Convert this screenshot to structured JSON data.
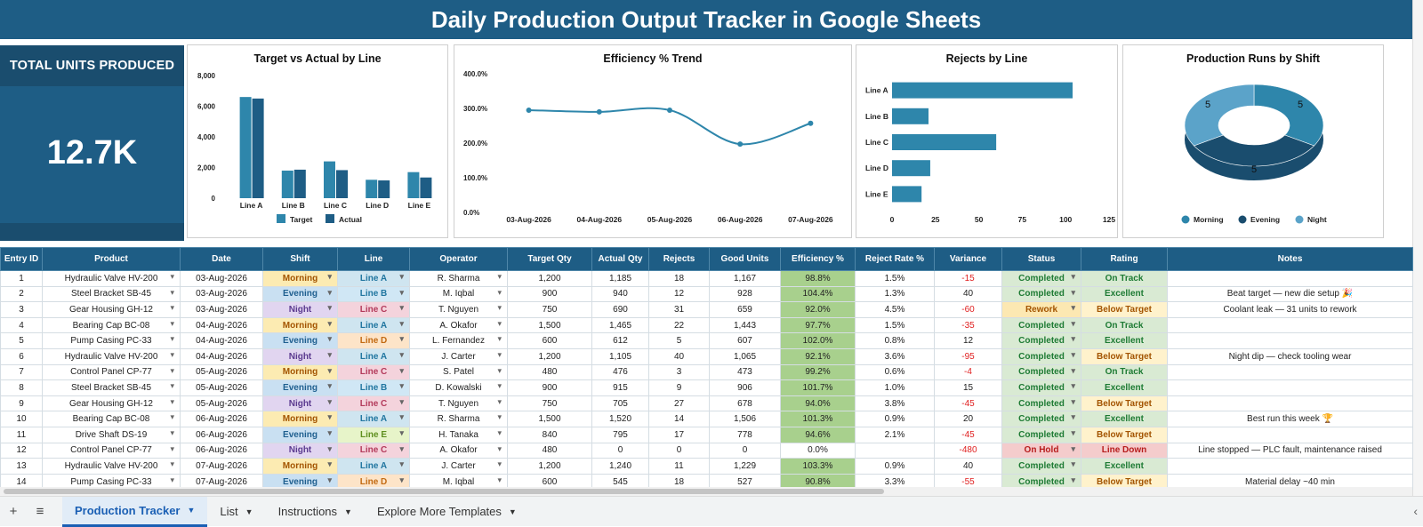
{
  "title": "Daily Production Output Tracker in Google Sheets",
  "kpi": {
    "label": "TOTAL UNITS PRODUCED",
    "value": "12.7K"
  },
  "colors": {
    "primary": "#1e5d85",
    "dark": "#1a4d6e",
    "accent": "#2e86ab",
    "light": "#5ba3c9"
  },
  "charts": {
    "target_vs_actual": {
      "title": "Target vs Actual by Line",
      "type": "bar",
      "categories": [
        "Line A",
        "Line B",
        "Line C",
        "Line D",
        "Line E"
      ],
      "series": [
        {
          "name": "Target",
          "values": [
            6600,
            1800,
            2400,
            1200,
            1700
          ]
        },
        {
          "name": "Actual",
          "values": [
            6500,
            1860,
            1830,
            1160,
            1350
          ]
        }
      ],
      "yticks": [
        "8,000",
        "6,000",
        "4,000",
        "2,000",
        "0"
      ],
      "ylim": [
        0,
        8000
      ]
    },
    "efficiency_trend": {
      "title": "Efficiency % Trend",
      "type": "line",
      "x": [
        "03-Aug-2026",
        "04-Aug-2026",
        "05-Aug-2026",
        "06-Aug-2026",
        "07-Aug-2026"
      ],
      "values": [
        295,
        290,
        295,
        197,
        257
      ],
      "yticks": [
        "400.0%",
        "300.0%",
        "200.0%",
        "100.0%",
        "0.0%"
      ],
      "ylim": [
        0,
        400
      ]
    },
    "rejects_by_line": {
      "title": "Rejects by Line",
      "type": "bar",
      "categories": [
        "Line A",
        "Line B",
        "Line C",
        "Line D",
        "Line E"
      ],
      "values": [
        104,
        21,
        60,
        22,
        17
      ],
      "xticks": [
        "0",
        "25",
        "50",
        "75",
        "100",
        "125"
      ],
      "xlim": [
        0,
        125
      ]
    },
    "runs_by_shift": {
      "title": "Production Runs by Shift",
      "type": "pie",
      "labels": [
        "Morning",
        "Evening",
        "Night"
      ],
      "values": [
        5,
        5,
        5
      ],
      "value_labels": [
        "5",
        "5",
        "5"
      ]
    }
  },
  "table": {
    "headers": [
      "Entry ID",
      "Product",
      "Date",
      "Shift",
      "Line",
      "Operator",
      "Target Qty",
      "Actual Qty",
      "Rejects",
      "Good Units",
      "Efficiency %",
      "Reject Rate %",
      "Variance",
      "Status",
      "Rating",
      "Notes"
    ],
    "rows": [
      [
        "1",
        "Hydraulic Valve HV-200",
        "03-Aug-2026",
        "Morning",
        "Line A",
        "R. Sharma",
        "1,200",
        "1,185",
        "18",
        "1,167",
        "98.8%",
        "1.5%",
        "-15",
        "Completed",
        "On Track",
        ""
      ],
      [
        "2",
        "Steel Bracket SB-45",
        "03-Aug-2026",
        "Evening",
        "Line B",
        "M. Iqbal",
        "900",
        "940",
        "12",
        "928",
        "104.4%",
        "1.3%",
        "40",
        "Completed",
        "Excellent",
        "Beat target — new die setup 🎉"
      ],
      [
        "3",
        "Gear Housing GH-12",
        "03-Aug-2026",
        "Night",
        "Line C",
        "T. Nguyen",
        "750",
        "690",
        "31",
        "659",
        "92.0%",
        "4.5%",
        "-60",
        "Rework",
        "Below Target",
        "Coolant leak — 31 units to rework"
      ],
      [
        "4",
        "Bearing Cap BC-08",
        "04-Aug-2026",
        "Morning",
        "Line A",
        "A. Okafor",
        "1,500",
        "1,465",
        "22",
        "1,443",
        "97.7%",
        "1.5%",
        "-35",
        "Completed",
        "On Track",
        ""
      ],
      [
        "5",
        "Pump Casing PC-33",
        "04-Aug-2026",
        "Evening",
        "Line D",
        "L. Fernandez",
        "600",
        "612",
        "5",
        "607",
        "102.0%",
        "0.8%",
        "12",
        "Completed",
        "Excellent",
        ""
      ],
      [
        "6",
        "Hydraulic Valve HV-200",
        "04-Aug-2026",
        "Night",
        "Line A",
        "J. Carter",
        "1,200",
        "1,105",
        "40",
        "1,065",
        "92.1%",
        "3.6%",
        "-95",
        "Completed",
        "Below Target",
        "Night dip — check tooling wear"
      ],
      [
        "7",
        "Control Panel CP-77",
        "05-Aug-2026",
        "Morning",
        "Line C",
        "S. Patel",
        "480",
        "476",
        "3",
        "473",
        "99.2%",
        "0.6%",
        "-4",
        "Completed",
        "On Track",
        ""
      ],
      [
        "8",
        "Steel Bracket SB-45",
        "05-Aug-2026",
        "Evening",
        "Line B",
        "D. Kowalski",
        "900",
        "915",
        "9",
        "906",
        "101.7%",
        "1.0%",
        "15",
        "Completed",
        "Excellent",
        ""
      ],
      [
        "9",
        "Gear Housing GH-12",
        "05-Aug-2026",
        "Night",
        "Line C",
        "T. Nguyen",
        "750",
        "705",
        "27",
        "678",
        "94.0%",
        "3.8%",
        "-45",
        "Completed",
        "Below Target",
        ""
      ],
      [
        "10",
        "Bearing Cap BC-08",
        "06-Aug-2026",
        "Morning",
        "Line A",
        "R. Sharma",
        "1,500",
        "1,520",
        "14",
        "1,506",
        "101.3%",
        "0.9%",
        "20",
        "Completed",
        "Excellent",
        "Best run this week 🏆"
      ],
      [
        "11",
        "Drive Shaft DS-19",
        "06-Aug-2026",
        "Evening",
        "Line E",
        "H. Tanaka",
        "840",
        "795",
        "17",
        "778",
        "94.6%",
        "2.1%",
        "-45",
        "Completed",
        "Below Target",
        ""
      ],
      [
        "12",
        "Control Panel CP-77",
        "06-Aug-2026",
        "Night",
        "Line C",
        "A. Okafor",
        "480",
        "0",
        "0",
        "0",
        "0.0%",
        "",
        "-480",
        "On Hold",
        "Line Down",
        "Line stopped — PLC fault, maintenance raised"
      ],
      [
        "13",
        "Hydraulic Valve HV-200",
        "07-Aug-2026",
        "Morning",
        "Line A",
        "J. Carter",
        "1,200",
        "1,240",
        "11",
        "1,229",
        "103.3%",
        "0.9%",
        "40",
        "Completed",
        "Excellent",
        ""
      ],
      [
        "14",
        "Pump Casing PC-33",
        "07-Aug-2026",
        "Evening",
        "Line D",
        "M. Iqbal",
        "600",
        "545",
        "18",
        "527",
        "90.8%",
        "3.3%",
        "-55",
        "Completed",
        "Below Target",
        "Material delay ~40 min"
      ]
    ]
  },
  "tabs": {
    "add": "+",
    "menu": "≡",
    "items": [
      "Production Tracker",
      "List",
      "Instructions",
      "Explore More Templates"
    ]
  }
}
